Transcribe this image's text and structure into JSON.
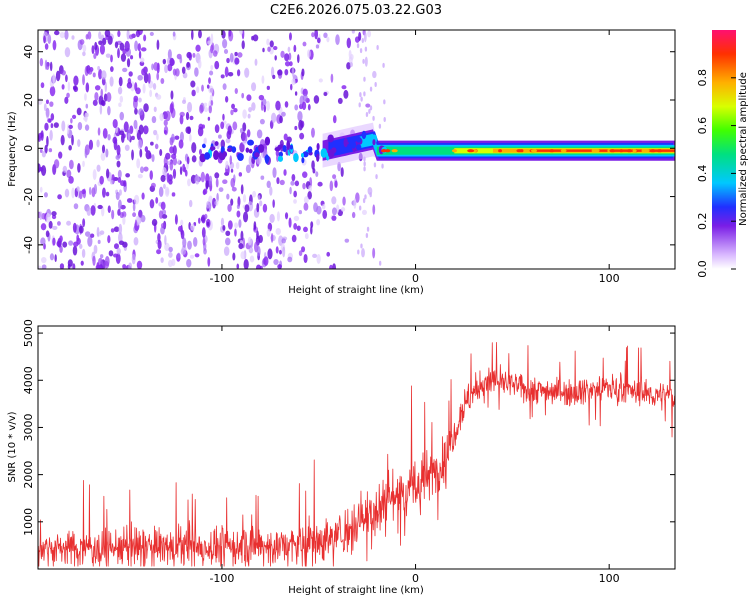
{
  "title": "C2E6.2026.075.03.22.G03",
  "colors": {
    "snr_line": "#e83030",
    "scatter": "#7a1ee6",
    "background": "#ffffff",
    "axes": "#000000"
  },
  "chart_data": [
    {
      "type": "heatmap",
      "name": "spectrogram",
      "xlabel": "Height of straight line (km)",
      "ylabel": "Frequency (Hz)",
      "xlim": [
        -195,
        134
      ],
      "ylim": [
        -50,
        49
      ],
      "xticks": [
        -100,
        0,
        100
      ],
      "xtick_labels": [
        "-100",
        "0",
        "100"
      ],
      "yticks": [
        -40,
        -20,
        0,
        20,
        40
      ],
      "ytick_labels": [
        "-40",
        "-20",
        "0",
        "20",
        "40"
      ],
      "noise_region_x": [
        -195,
        -20
      ],
      "noise_density_falloff_x": [
        -70,
        -45
      ],
      "signal_band": {
        "x_start": -48,
        "x_end": 134,
        "center_frequency": -1,
        "description": "narrow band near 0 Hz, rising to ~5 Hz around -25 km"
      },
      "colorbar": {
        "label": "Normalized spectral amplitude",
        "min": 0.0,
        "max": 1.0,
        "ticks": [
          0.0,
          0.2,
          0.4,
          0.6,
          0.8
        ],
        "tick_labels": [
          "0.0",
          "0.2",
          "0.4",
          "0.6",
          "0.8"
        ]
      }
    },
    {
      "type": "line",
      "name": "snr",
      "xlabel": "Height of straight line (km)",
      "ylabel": "SNR (10 * v/v)",
      "xlim": [
        -195,
        134
      ],
      "ylim": [
        0,
        5150
      ],
      "xticks": [
        -100,
        0,
        100
      ],
      "xtick_labels": [
        "-100",
        "0",
        "100"
      ],
      "yticks": [
        1000,
        2000,
        3000,
        4000,
        5000
      ],
      "ytick_labels": [
        "1000",
        "2000",
        "3000",
        "4000",
        "5000"
      ],
      "series": [
        {
          "name": "SNR",
          "trend_x": [
            -195,
            -120,
            -60,
            -40,
            -30,
            -20,
            -10,
            0,
            10,
            15,
            20,
            25,
            30,
            40,
            60,
            80,
            100,
            120,
            134
          ],
          "trend_y": [
            450,
            450,
            500,
            700,
            1000,
            1300,
            1600,
            1750,
            2050,
            2300,
            2900,
            3500,
            3750,
            4000,
            3800,
            3750,
            3850,
            3700,
            3650
          ],
          "noise_amplitude_x": [
            -195,
            -40,
            -20,
            0,
            20,
            40,
            134
          ],
          "noise_amplitude_y": [
            450,
            600,
            900,
            800,
            500,
            350,
            350
          ]
        }
      ]
    }
  ]
}
